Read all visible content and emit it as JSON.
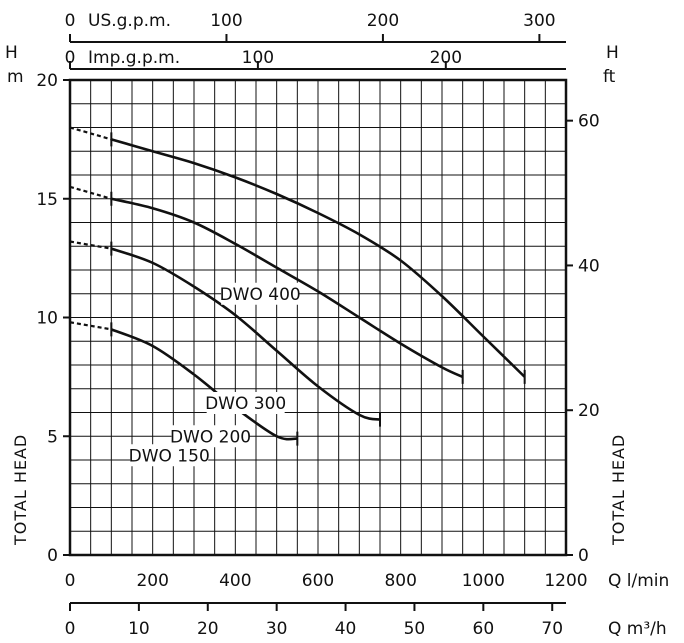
{
  "chart_data": {
    "type": "line",
    "x": {
      "unit": "Q l/min",
      "range": [
        0,
        1200
      ],
      "ticks": [
        0,
        200,
        400,
        600,
        800,
        1000,
        1200
      ]
    },
    "y": {
      "unit": "H m",
      "range": [
        0,
        20
      ],
      "ticks": [
        0,
        5,
        10,
        15,
        20
      ]
    },
    "secondary_axes": {
      "us_gpm": {
        "label": "US.g.p.m.",
        "first_label": "0",
        "ticks": [
          100,
          200,
          300
        ]
      },
      "imp_gpm": {
        "label": "Imp.g.p.m.",
        "first_label": "0",
        "ticks": [
          100,
          200
        ]
      },
      "m3h": {
        "label": "Q m³/h",
        "ticks": [
          0,
          10,
          20,
          30,
          40,
          50,
          60,
          70
        ]
      },
      "ft": {
        "unit": "H ft",
        "ticks": [
          0,
          20,
          40,
          60
        ]
      }
    },
    "series": [
      {
        "name": "DWO 150",
        "dashed": [
          [
            0,
            9.8
          ],
          [
            100,
            9.5
          ]
        ],
        "values": [
          [
            100,
            9.5
          ],
          [
            200,
            8.8
          ],
          [
            300,
            7.6
          ],
          [
            400,
            6.2
          ],
          [
            500,
            5.0
          ],
          [
            550,
            4.9
          ]
        ],
        "label_at": [
          240,
          4.2
        ]
      },
      {
        "name": "DWO 200",
        "dashed": [
          [
            0,
            13.2
          ],
          [
            100,
            12.9
          ]
        ],
        "values": [
          [
            100,
            12.9
          ],
          [
            200,
            12.3
          ],
          [
            300,
            11.3
          ],
          [
            400,
            10.1
          ],
          [
            500,
            8.6
          ],
          [
            600,
            7.1
          ],
          [
            700,
            5.9
          ],
          [
            750,
            5.7
          ]
        ],
        "label_at": [
          340,
          5.0
        ]
      },
      {
        "name": "DWO 300",
        "dashed": [
          [
            0,
            15.5
          ],
          [
            100,
            15.0
          ]
        ],
        "values": [
          [
            100,
            15.0
          ],
          [
            200,
            14.6
          ],
          [
            300,
            14.0
          ],
          [
            400,
            13.1
          ],
          [
            500,
            12.1
          ],
          [
            600,
            11.1
          ],
          [
            700,
            10.0
          ],
          [
            800,
            8.9
          ],
          [
            900,
            7.9
          ],
          [
            950,
            7.5
          ]
        ],
        "label_at": [
          425,
          6.4
        ]
      },
      {
        "name": "DWO 400",
        "dashed": [
          [
            0,
            18.0
          ],
          [
            100,
            17.5
          ]
        ],
        "values": [
          [
            100,
            17.5
          ],
          [
            200,
            17.0
          ],
          [
            300,
            16.5
          ],
          [
            400,
            15.9
          ],
          [
            500,
            15.2
          ],
          [
            600,
            14.4
          ],
          [
            700,
            13.5
          ],
          [
            800,
            12.4
          ],
          [
            900,
            10.9
          ],
          [
            1000,
            9.2
          ],
          [
            1100,
            7.5
          ]
        ],
        "label_at": [
          460,
          11.0
        ]
      }
    ],
    "left_title": "TOTAL HEAD",
    "right_title": "TOTAL HEAD",
    "grid": true,
    "color": "#111111"
  },
  "labels": {
    "h_left": "H",
    "m_left": "m",
    "h_right": "H",
    "ft_right": "ft"
  }
}
